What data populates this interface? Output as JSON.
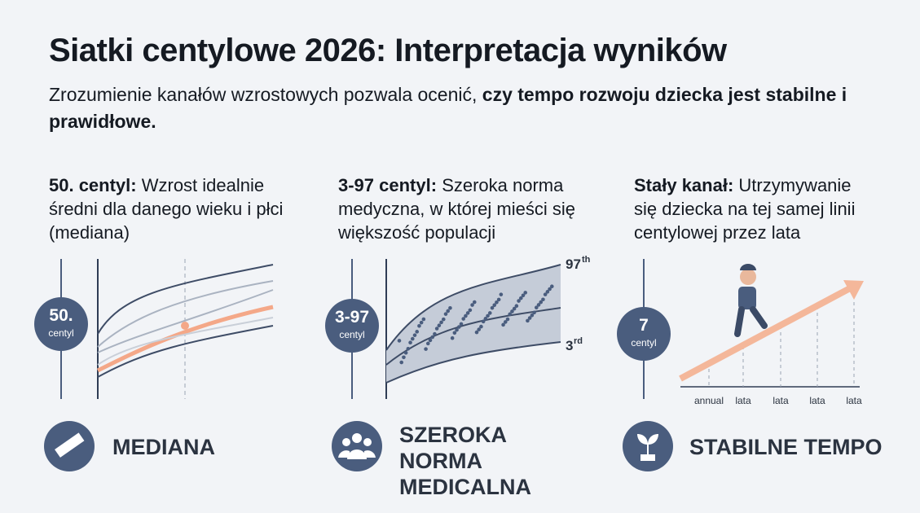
{
  "header": {
    "title": "Siatki centylowe 2026: Interpretacja wyników",
    "subtitle_plain": "Zrozumienie kanałów wzrostowych pozwala ocenić,",
    "subtitle_bold": "czy tempo rozwoju dziecka jest stabilne i prawidłowe."
  },
  "panels": [
    {
      "lead": "50. centyl:",
      "text": "Wzrost idealnie średni dla danego wieku i płci (mediana)",
      "badge": "50.",
      "badge_sub": "centyl",
      "footer": "MEDIANA"
    },
    {
      "lead": "3-97 centyl:",
      "text": "Szeroka norma medyczna, w której mieści się większość populacji",
      "badge": "3-97",
      "badge_sub": "centyl",
      "top_label": "97",
      "top_suffix": "th",
      "bottom_label": "3",
      "bottom_suffix": "rd",
      "footer": "SZEROKA NORMA MEDICALNA"
    },
    {
      "lead": "Stały kanał:",
      "text": "Utrzymywanie się dziecka na tej samej linii centylowej przez lata",
      "badge": "7",
      "badge_sub": "centyl",
      "x_labels": [
        "annual",
        "lata",
        "lata",
        "lata",
        "lata"
      ],
      "footer": "STABILNE TEMPO"
    }
  ]
}
